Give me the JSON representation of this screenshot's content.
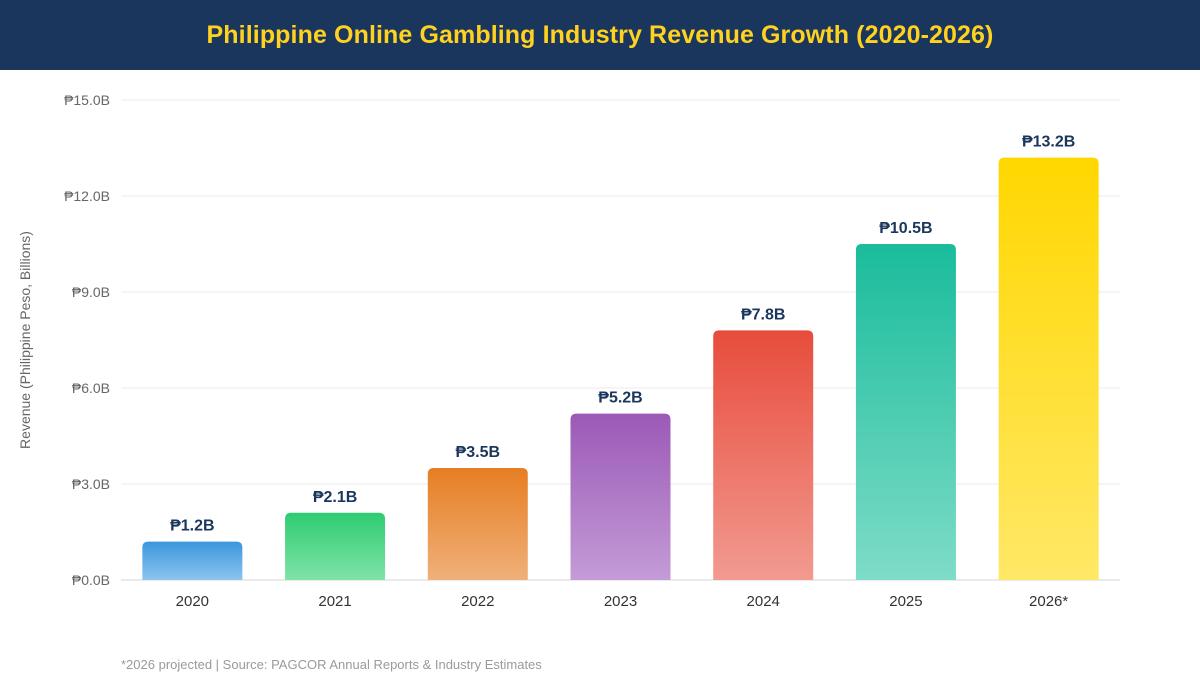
{
  "header": {
    "title": "Philippine Online Gambling Industry Revenue Growth (2020-2026)"
  },
  "chart_data": {
    "type": "bar",
    "title": "Philippine Online Gambling Industry Revenue Growth (2020-2026)",
    "xlabel": "",
    "ylabel": "Revenue (Philippine Peso, Billions)",
    "ylim": [
      0,
      15
    ],
    "yticks": [
      0,
      3,
      6,
      9,
      12,
      15
    ],
    "ytick_labels": [
      "₱0.0B",
      "₱3.0B",
      "₱6.0B",
      "₱9.0B",
      "₱12.0B",
      "₱15.0B"
    ],
    "grid": true,
    "legend": "none",
    "categories": [
      "2020",
      "2021",
      "2022",
      "2023",
      "2024",
      "2025",
      "2026*"
    ],
    "values": [
      1.2,
      2.1,
      3.5,
      5.2,
      7.8,
      10.5,
      13.2
    ],
    "value_labels": [
      "₱1.2B",
      "₱2.1B",
      "₱3.5B",
      "₱5.2B",
      "₱7.8B",
      "₱10.5B",
      "₱13.2B"
    ],
    "colors": [
      [
        "#3a96dd",
        "#8cc4ef"
      ],
      [
        "#2fcc71",
        "#7fe3a8"
      ],
      [
        "#e67e22",
        "#f0b07a"
      ],
      [
        "#9b59b6",
        "#c49bd7"
      ],
      [
        "#e74c3c",
        "#f29a90"
      ],
      [
        "#1abc9c",
        "#7edcc7"
      ],
      [
        "#ffd700",
        "#ffe866"
      ]
    ]
  },
  "footnote": "*2026 projected | Source: PAGCOR Annual Reports & Industry Estimates"
}
